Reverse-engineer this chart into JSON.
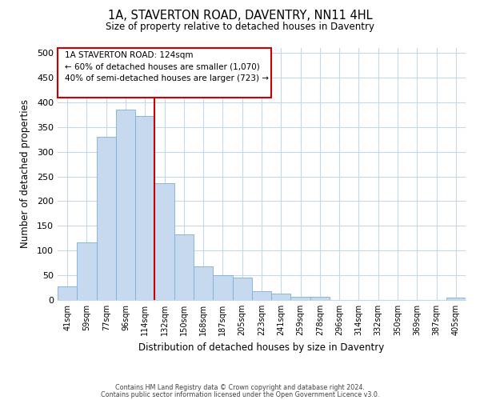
{
  "title": "1A, STAVERTON ROAD, DAVENTRY, NN11 4HL",
  "subtitle": "Size of property relative to detached houses in Daventry",
  "xlabel": "Distribution of detached houses by size in Daventry",
  "ylabel": "Number of detached properties",
  "bar_labels": [
    "41sqm",
    "59sqm",
    "77sqm",
    "96sqm",
    "114sqm",
    "132sqm",
    "150sqm",
    "168sqm",
    "187sqm",
    "205sqm",
    "223sqm",
    "241sqm",
    "259sqm",
    "278sqm",
    "296sqm",
    "314sqm",
    "332sqm",
    "350sqm",
    "369sqm",
    "387sqm",
    "405sqm"
  ],
  "bar_values": [
    27,
    117,
    330,
    385,
    373,
    237,
    133,
    68,
    50,
    45,
    18,
    13,
    7,
    7,
    0,
    0,
    0,
    0,
    0,
    0,
    5
  ],
  "bar_color": "#c6d9ee",
  "bar_edgecolor": "#7ab0d4",
  "vline_x": 4.5,
  "vline_color": "#cc0000",
  "ylim": [
    0,
    510
  ],
  "yticks": [
    0,
    50,
    100,
    150,
    200,
    250,
    300,
    350,
    400,
    450,
    500
  ],
  "annotation_title": "1A STAVERTON ROAD: 124sqm",
  "annotation_line1": "← 60% of detached houses are smaller (1,070)",
  "annotation_line2": "40% of semi-detached houses are larger (723) →",
  "annotation_box_color": "#cc0000",
  "footer_line1": "Contains HM Land Registry data © Crown copyright and database right 2024.",
  "footer_line2": "Contains public sector information licensed under the Open Government Licence v3.0.",
  "bg_color": "#ffffff",
  "grid_color": "#c5d8ea"
}
